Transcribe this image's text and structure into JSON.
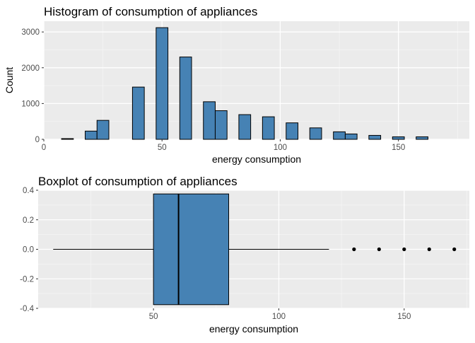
{
  "chart_data": [
    {
      "type": "bar",
      "title": "Histogram of consumption of appliances",
      "xlabel": "energy consumption",
      "ylabel": "Count",
      "xlim": [
        0,
        180
      ],
      "ylim": [
        0,
        3300
      ],
      "xticks": [
        0,
        50,
        100,
        150
      ],
      "yticks": [
        0,
        1000,
        2000,
        3000
      ],
      "bin_width": 5,
      "bar_color": "#4682b4",
      "panel_color": "#ebebeb",
      "grid": true,
      "bins": [
        {
          "x": 10,
          "count": 20
        },
        {
          "x": 20,
          "count": 230
        },
        {
          "x": 25,
          "count": 530
        },
        {
          "x": 40,
          "count": 1460
        },
        {
          "x": 50,
          "count": 3120
        },
        {
          "x": 60,
          "count": 2300
        },
        {
          "x": 70,
          "count": 1050
        },
        {
          "x": 75,
          "count": 800
        },
        {
          "x": 85,
          "count": 690
        },
        {
          "x": 95,
          "count": 630
        },
        {
          "x": 105,
          "count": 460
        },
        {
          "x": 115,
          "count": 320
        },
        {
          "x": 125,
          "count": 210
        },
        {
          "x": 130,
          "count": 150
        },
        {
          "x": 140,
          "count": 110
        },
        {
          "x": 150,
          "count": 70
        },
        {
          "x": 160,
          "count": 70
        }
      ]
    },
    {
      "type": "box",
      "title": "Boxplot of consumption of appliances",
      "xlabel": "energy consumption",
      "ylabel": "",
      "xlim": [
        4,
        176
      ],
      "ylim": [
        -0.4,
        0.4
      ],
      "xticks": [
        50,
        100,
        150
      ],
      "yticks": [
        -0.4,
        -0.2,
        0.0,
        0.2,
        0.4
      ],
      "ytick_labels": [
        "-0.4",
        "-0.2",
        "0.0",
        "0.2",
        "0.4"
      ],
      "box_color": "#4682b4",
      "panel_color": "#ebebeb",
      "grid": true,
      "whisker_low": 10,
      "q1": 50,
      "median": 60,
      "q3": 80,
      "whisker_high": 120,
      "box_half_height": 0.375,
      "outliers": [
        130,
        140,
        150,
        160,
        170
      ]
    }
  ]
}
